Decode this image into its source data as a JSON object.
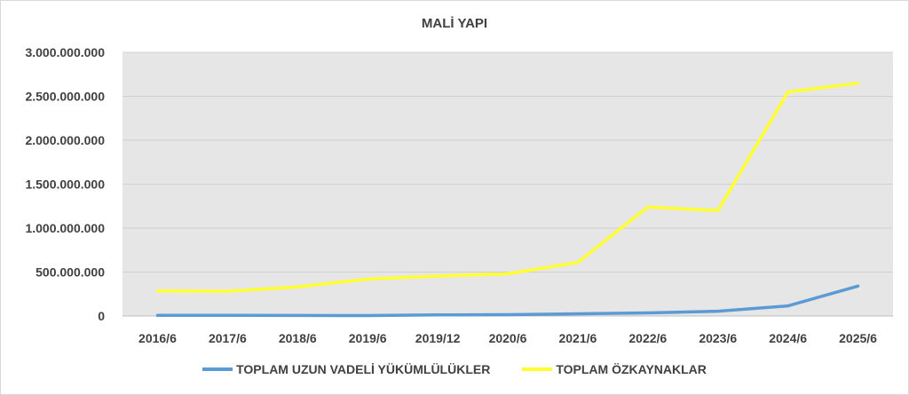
{
  "chart_data": {
    "type": "line",
    "title": "MALİ YAPI",
    "xlabel": "",
    "ylabel": "",
    "categories": [
      "2016/6",
      "2017/6",
      "2018/6",
      "2019/6",
      "2019/12",
      "2020/6",
      "2021/6",
      "2022/6",
      "2023/6",
      "2024/6",
      "2025/6"
    ],
    "ylim": [
      0,
      3000000000
    ],
    "yticks": [
      0,
      500000000,
      1000000000,
      1500000000,
      2000000000,
      2500000000,
      3000000000
    ],
    "ytick_labels": [
      "0",
      "500.000.000",
      "1.000.000.000",
      "1.500.000.000",
      "2.000.000.000",
      "2.500.000.000",
      "3.000.000.000"
    ],
    "grid": true,
    "legend_position": "bottom",
    "plot_background": "#e7e6e6",
    "series": [
      {
        "name": "TOPLAM UZUN VADELİ YÜKÜMLÜLÜKLER",
        "color": "#5b9bd5",
        "values": [
          8000000,
          7000000,
          6000000,
          5000000,
          12000000,
          15000000,
          25000000,
          35000000,
          55000000,
          115000000,
          340000000
        ]
      },
      {
        "name": "TOPLAM ÖZKAYNAKLAR",
        "color": "#ffff33",
        "values": [
          285000000,
          282000000,
          330000000,
          420000000,
          455000000,
          480000000,
          610000000,
          1240000000,
          1200000000,
          2550000000,
          2650000000
        ]
      }
    ]
  }
}
